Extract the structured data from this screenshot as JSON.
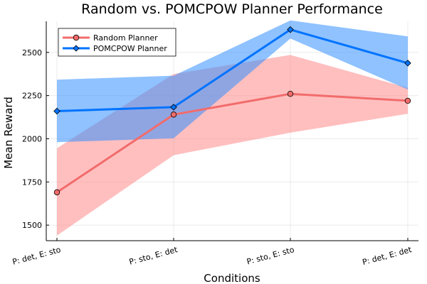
{
  "chart_data": {
    "type": "line",
    "title": "Random vs. POMCPOW Planner Performance",
    "xlabel": "Conditions",
    "ylabel": "Mean Reward",
    "categories": [
      "P: det, E: sto",
      "P: sto, E: det",
      "P: sto, E: sto",
      "P: det, E: det"
    ],
    "ylim": [
      1410,
      2680
    ],
    "yticks": [
      1500,
      1750,
      2000,
      2250,
      2500
    ],
    "grid": true,
    "legend_position": "top-left",
    "series": [
      {
        "name": "Random Planner",
        "color": "#f26c6c",
        "band_color": "#ff8a8a",
        "marker": "circle",
        "values": [
          1690,
          2140,
          2260,
          2220
        ],
        "lower": [
          1440,
          1905,
          2035,
          2145
        ],
        "upper": [
          1945,
          2375,
          2485,
          2295
        ]
      },
      {
        "name": "POMCPOW Planner",
        "color": "#0073ff",
        "band_color": "#3390ff",
        "marker": "diamond",
        "values": [
          2160,
          2183,
          2632,
          2438
        ],
        "lower": [
          1980,
          2003,
          2580,
          2285
        ],
        "upper": [
          2342,
          2365,
          2685,
          2593
        ]
      }
    ]
  }
}
